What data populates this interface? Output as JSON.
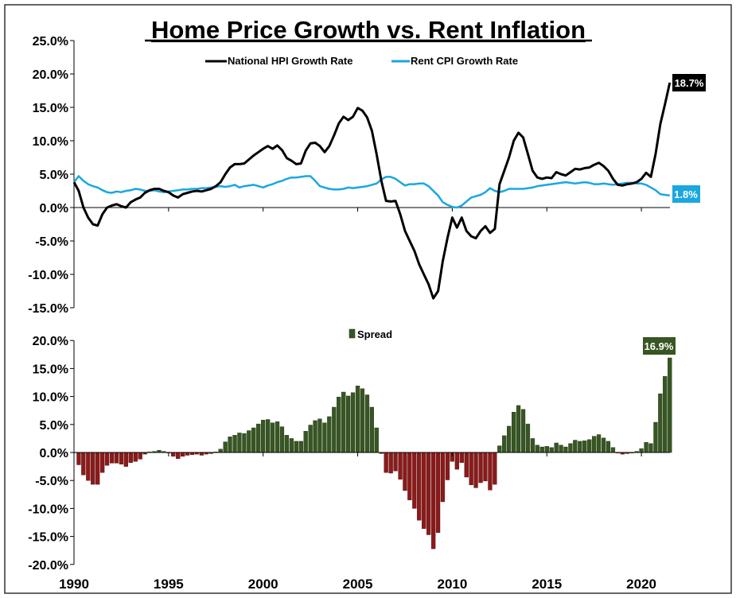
{
  "chart_data": [
    {
      "type": "line",
      "title": "Home Price Growth vs. Rent Inflation",
      "xlabel": "",
      "ylabel": "",
      "ylim": [
        -15,
        25
      ],
      "xlim": [
        1990,
        2021.5
      ],
      "y_ticks": [
        "25.0%",
        "20.0%",
        "15.0%",
        "10.0%",
        "5.0%",
        "0.0%",
        "-5.0%",
        "-10.0%",
        "-15.0%"
      ],
      "y_tick_values": [
        25,
        20,
        15,
        10,
        5,
        0,
        -5,
        -10,
        -15
      ],
      "legend_position": "top-center",
      "x_start": 1990,
      "x_step": 0.25,
      "series": [
        {
          "name": "National HPI Growth Rate",
          "color": "#000000",
          "end_label": "18.7%",
          "values": [
            3.8,
            2.5,
            0.0,
            -1.5,
            -2.5,
            -2.7,
            -1.0,
            0.0,
            0.3,
            0.5,
            0.2,
            0.0,
            0.8,
            1.2,
            1.5,
            2.2,
            2.6,
            2.8,
            2.8,
            2.5,
            2.3,
            1.8,
            1.5,
            2.0,
            2.2,
            2.4,
            2.5,
            2.4,
            2.6,
            2.8,
            3.2,
            3.8,
            5.0,
            6.0,
            6.5,
            6.5,
            6.6,
            7.2,
            7.8,
            8.3,
            8.8,
            9.2,
            8.8,
            9.3,
            8.6,
            7.4,
            7.0,
            6.5,
            6.6,
            8.5,
            9.6,
            9.7,
            9.2,
            8.3,
            9.2,
            10.8,
            12.6,
            13.6,
            13.1,
            13.6,
            14.9,
            14.5,
            13.5,
            11.5,
            8.0,
            4.0,
            1.0,
            0.9,
            1.0,
            -1.0,
            -3.5,
            -5.0,
            -6.5,
            -8.5,
            -10.0,
            -11.5,
            -13.6,
            -12.5,
            -8.0,
            -4.5,
            -1.5,
            -3.0,
            -1.5,
            -3.5,
            -4.3,
            -4.6,
            -3.5,
            -2.8,
            -3.8,
            -3.2,
            3.5,
            5.5,
            7.5,
            10.0,
            11.2,
            10.5,
            8.0,
            5.5,
            4.5,
            4.3,
            4.5,
            4.4,
            5.3,
            5.0,
            4.8,
            5.3,
            5.8,
            5.7,
            5.9,
            6.0,
            6.4,
            6.7,
            6.2,
            5.5,
            4.3,
            3.4,
            3.3,
            3.5,
            3.6,
            3.8,
            4.3,
            5.2,
            4.6,
            8.0,
            12.5,
            15.5,
            18.7
          ]
        },
        {
          "name": "Rent CPI Growth Rate",
          "color": "#1aa7e0",
          "end_label": "1.8%",
          "values": [
            3.8,
            4.7,
            4.0,
            3.5,
            3.2,
            3.0,
            2.6,
            2.3,
            2.2,
            2.4,
            2.3,
            2.5,
            2.6,
            2.8,
            2.7,
            2.5,
            2.5,
            2.6,
            2.4,
            2.3,
            2.4,
            2.5,
            2.6,
            2.7,
            2.7,
            2.8,
            2.8,
            2.9,
            2.9,
            3.0,
            3.1,
            3.2,
            3.1,
            3.2,
            3.4,
            3.0,
            3.2,
            3.3,
            3.4,
            3.2,
            3.0,
            3.3,
            3.5,
            3.8,
            4.0,
            4.3,
            4.5,
            4.5,
            4.6,
            4.7,
            4.7,
            4.0,
            3.2,
            3.0,
            2.8,
            2.7,
            2.7,
            2.8,
            3.0,
            2.9,
            3.0,
            3.1,
            3.2,
            3.4,
            3.6,
            4.2,
            4.6,
            4.6,
            4.3,
            3.8,
            3.3,
            3.5,
            3.5,
            3.6,
            3.6,
            3.2,
            2.5,
            1.8,
            0.8,
            0.4,
            0.1,
            0.0,
            0.3,
            0.9,
            1.5,
            1.7,
            1.9,
            2.3,
            2.9,
            2.5,
            2.3,
            2.5,
            2.8,
            2.8,
            2.8,
            2.8,
            2.9,
            3.0,
            3.2,
            3.3,
            3.4,
            3.5,
            3.6,
            3.7,
            3.8,
            3.7,
            3.6,
            3.7,
            3.8,
            3.7,
            3.5,
            3.5,
            3.6,
            3.5,
            3.4,
            3.5,
            3.6,
            3.7,
            3.7,
            3.6,
            3.6,
            3.4,
            3.0,
            2.6,
            2.0,
            1.9,
            1.8
          ]
        }
      ]
    },
    {
      "type": "bar",
      "title": "",
      "ylim": [
        -20,
        20
      ],
      "xlim": [
        1990,
        2021.5
      ],
      "y_ticks": [
        "20.0%",
        "15.0%",
        "10.0%",
        "5.0%",
        "0.0%",
        "-5.0%",
        "-10.0%",
        "-15.0%",
        "-20.0%"
      ],
      "y_tick_values": [
        20,
        15,
        10,
        5,
        0,
        -5,
        -10,
        -15,
        -20
      ],
      "x_ticks": [
        "1990",
        "1995",
        "2000",
        "2005",
        "2010",
        "2015",
        "2020"
      ],
      "x_tick_values": [
        1990,
        1995,
        2000,
        2005,
        2010,
        2015,
        2020
      ],
      "legend_position": "top-center",
      "x_start": 1990,
      "x_step": 0.25,
      "series": [
        {
          "name": "Spread",
          "color": "#375623",
          "negative_color": "#8b1a1a",
          "end_label": "16.9%",
          "values": [
            0.0,
            -2.2,
            -4.0,
            -5.0,
            -5.7,
            -5.7,
            -3.6,
            -2.3,
            -1.9,
            -1.9,
            -2.1,
            -2.5,
            -1.8,
            -1.6,
            -1.2,
            -0.3,
            0.1,
            0.2,
            0.4,
            0.2,
            -0.1,
            -0.7,
            -1.1,
            -0.7,
            -0.5,
            -0.4,
            -0.3,
            -0.5,
            -0.3,
            -0.2,
            0.1,
            0.6,
            1.9,
            2.8,
            3.1,
            3.5,
            3.4,
            3.9,
            4.4,
            5.1,
            5.8,
            5.9,
            5.3,
            5.5,
            4.6,
            3.1,
            2.5,
            2.0,
            2.0,
            3.8,
            4.9,
            5.7,
            6.0,
            5.3,
            6.4,
            8.1,
            9.9,
            10.8,
            10.1,
            10.7,
            11.9,
            11.4,
            10.3,
            8.1,
            4.4,
            -0.2,
            -3.6,
            -3.7,
            -3.3,
            -4.8,
            -6.8,
            -8.5,
            -10.0,
            -12.1,
            -13.6,
            -14.7,
            -17.2,
            -14.3,
            -8.8,
            -4.9,
            -1.6,
            -3.0,
            -1.8,
            -4.4,
            -5.8,
            -6.3,
            -5.4,
            -5.1,
            -6.7,
            -5.7,
            1.2,
            3.0,
            4.7,
            7.2,
            8.4,
            7.7,
            5.1,
            2.5,
            1.3,
            1.0,
            1.1,
            0.9,
            1.7,
            1.3,
            1.0,
            1.6,
            2.2,
            2.0,
            2.1,
            2.3,
            2.9,
            3.2,
            2.6,
            2.0,
            0.9,
            -0.1,
            -0.3,
            -0.2,
            -0.1,
            0.2,
            0.7,
            1.8,
            1.6,
            5.4,
            10.5,
            13.6,
            16.9
          ]
        }
      ]
    }
  ]
}
